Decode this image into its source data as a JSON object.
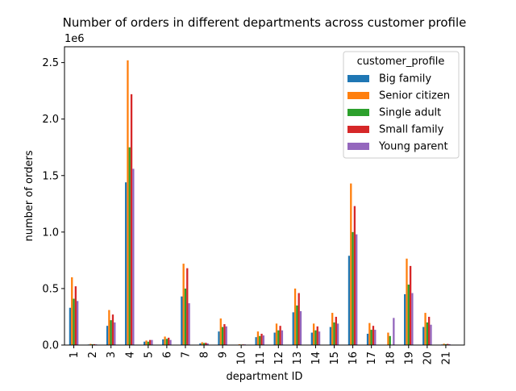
{
  "chart_data": {
    "type": "bar",
    "title": "Number of orders in different departments across customer profile",
    "xlabel": "department ID",
    "ylabel": "number of orders",
    "y_offset_label": "1e6",
    "ylim": [
      0,
      2640000
    ],
    "yticks": [
      0,
      500000,
      1000000,
      1500000,
      2000000,
      2500000
    ],
    "ytick_labels": [
      "0.0",
      "0.5",
      "1.0",
      "1.5",
      "2.0",
      "2.5"
    ],
    "grid": false,
    "legend_position": "top-right",
    "legend_title": "customer_profile",
    "categories": [
      "1",
      "2",
      "3",
      "4",
      "5",
      "6",
      "7",
      "8",
      "9",
      "10",
      "11",
      "12",
      "13",
      "14",
      "15",
      "16",
      "17",
      "18",
      "19",
      "20",
      "21"
    ],
    "series": [
      {
        "name": "Big family",
        "color": "#1f77b4",
        "values": [
          330000,
          5000,
          170000,
          1440000,
          30000,
          50000,
          430000,
          15000,
          120000,
          3000,
          70000,
          110000,
          290000,
          110000,
          160000,
          790000,
          100000,
          0,
          450000,
          160000,
          5000
        ]
      },
      {
        "name": "Senior citizen",
        "color": "#ff7f0e",
        "values": [
          600000,
          10000,
          310000,
          2520000,
          40000,
          75000,
          720000,
          25000,
          235000,
          7000,
          120000,
          190000,
          500000,
          190000,
          285000,
          1430000,
          195000,
          110000,
          765000,
          285000,
          12000
        ]
      },
      {
        "name": "Single adult",
        "color": "#2ca02c",
        "values": [
          410000,
          7000,
          220000,
          1750000,
          30000,
          55000,
          500000,
          18000,
          160000,
          5000,
          80000,
          130000,
          350000,
          130000,
          200000,
          1000000,
          135000,
          80000,
          535000,
          200000,
          8000
        ]
      },
      {
        "name": "Small family",
        "color": "#d62728",
        "values": [
          520000,
          8000,
          270000,
          2220000,
          45000,
          65000,
          680000,
          20000,
          185000,
          6000,
          100000,
          170000,
          460000,
          165000,
          250000,
          1230000,
          170000,
          0,
          700000,
          250000,
          10000
        ]
      },
      {
        "name": "Young parent",
        "color": "#9467bd",
        "values": [
          390000,
          6000,
          200000,
          1560000,
          45000,
          45000,
          370000,
          15000,
          165000,
          6000,
          85000,
          130000,
          300000,
          120000,
          190000,
          980000,
          135000,
          240000,
          460000,
          180000,
          8000
        ]
      }
    ]
  }
}
